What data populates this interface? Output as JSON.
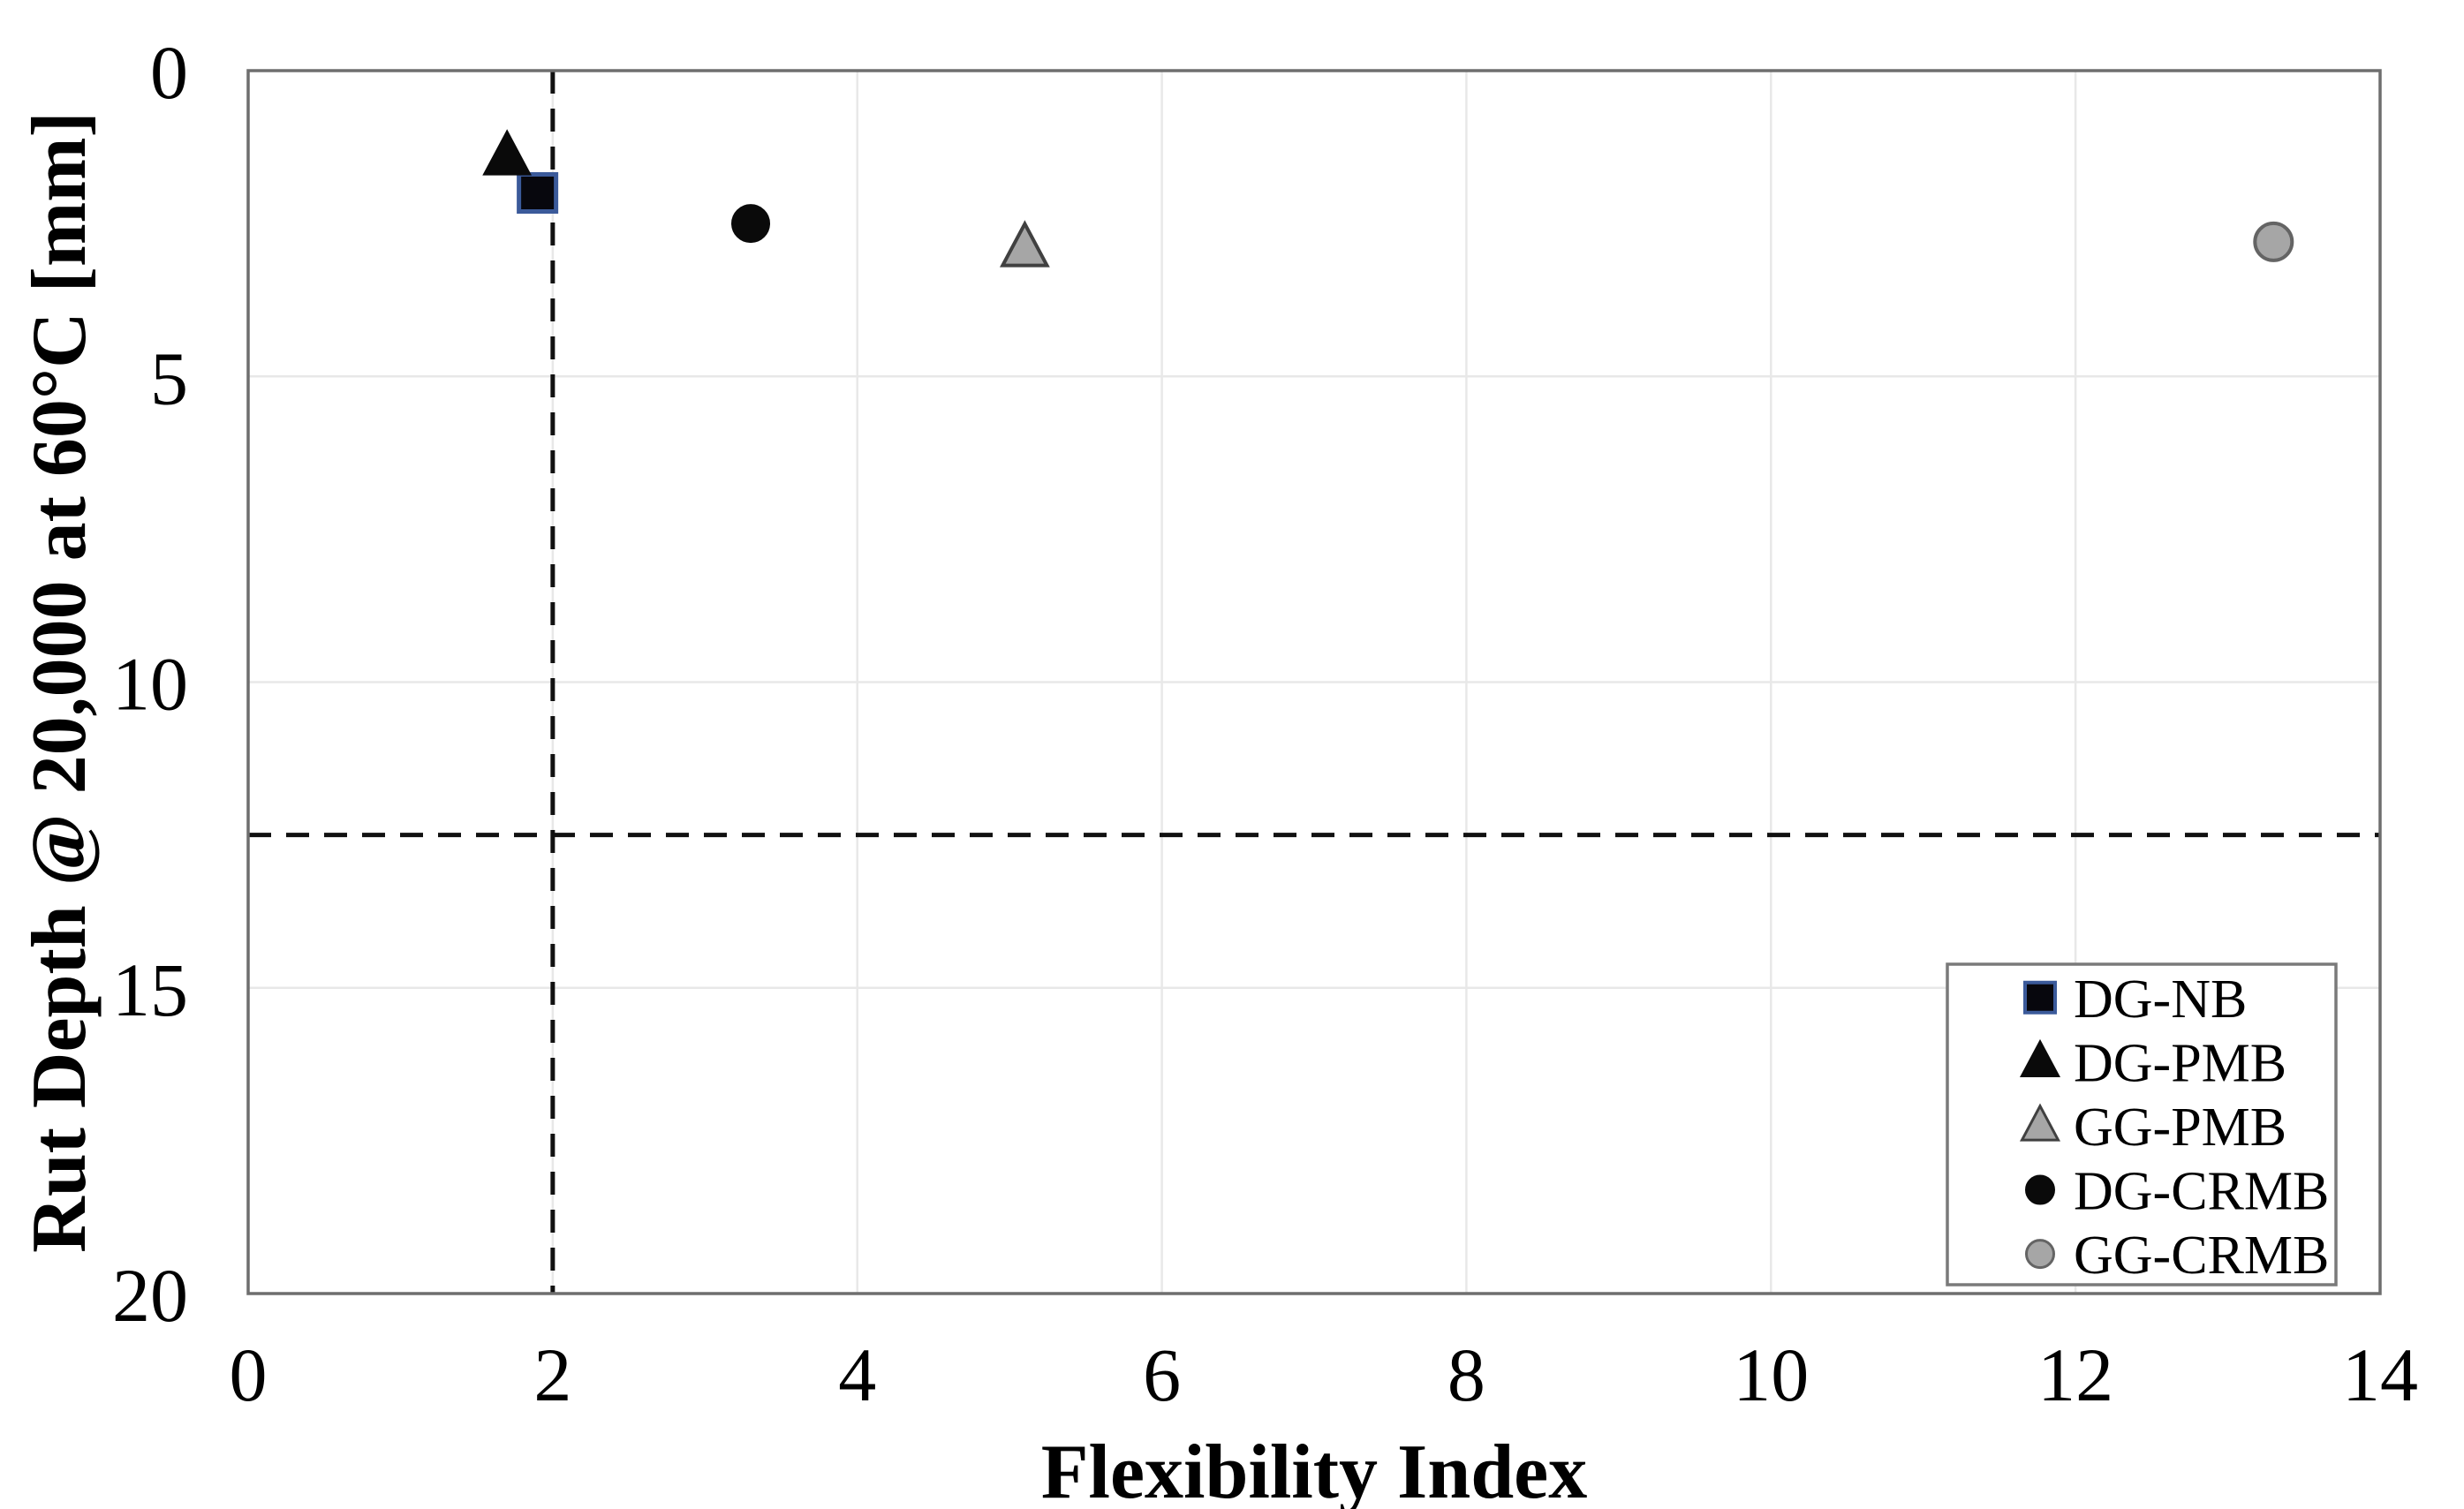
{
  "figure": {
    "background": "#ffffff"
  },
  "chart_data": {
    "type": "scatter",
    "title": "",
    "xlabel": "Flexibility Index",
    "ylabel": "Rut Depth @ 20,000 at 60°C [mm]",
    "xlim": [
      0,
      14
    ],
    "ylim": [
      0,
      20
    ],
    "y_axis_inverted": true,
    "xticks": [
      "0",
      "2",
      "4",
      "6",
      "8",
      "10",
      "12",
      "14"
    ],
    "yticks": [
      "0",
      "5",
      "10",
      "15",
      "20"
    ],
    "grid": true,
    "gridline_color": "#e8e8e8",
    "axis_border_color": "#6e6e6e",
    "series": [
      {
        "name": "DG-NB",
        "marker": "square",
        "fill": "#07070d",
        "stroke": "#3b5a9a",
        "stroke_width": 5,
        "size": 42,
        "legend_size": 34,
        "points": [
          [
            1.9,
            2.0
          ]
        ]
      },
      {
        "name": "DG-PMB",
        "marker": "triangle",
        "fill": "#0a0a0a",
        "stroke": "#0a0a0a",
        "stroke_width": 2,
        "size": 46,
        "legend_size": 36,
        "points": [
          [
            1.7,
            1.4
          ]
        ]
      },
      {
        "name": "GG-PMB",
        "marker": "triangle",
        "fill": "#a6a6a6",
        "stroke": "#404040",
        "stroke_width": 4,
        "size": 44,
        "legend_size": 36,
        "points": [
          [
            5.1,
            2.9
          ]
        ]
      },
      {
        "name": "DG-CRMB",
        "marker": "circle",
        "fill": "#0a0a0a",
        "stroke": "#0a0a0a",
        "stroke_width": 2,
        "size": 42,
        "legend_size": 31,
        "points": [
          [
            3.3,
            2.5
          ]
        ]
      },
      {
        "name": "GG-CRMB",
        "marker": "circle",
        "fill": "#a6a6a6",
        "stroke": "#646464",
        "stroke_width": 4,
        "size": 42,
        "legend_size": 31,
        "points": [
          [
            13.3,
            2.8
          ]
        ]
      }
    ],
    "reference_lines": [
      {
        "axis": "x",
        "value": 2,
        "style": "dashed",
        "color": "#111111"
      },
      {
        "axis": "y",
        "value": 12.5,
        "style": "dashed",
        "color": "#111111"
      }
    ],
    "legend": {
      "position": "bottom-right",
      "border_color": "#7a7a7a",
      "entries": [
        "DG-NB",
        "DG-PMB",
        "GG-PMB",
        "DG-CRMB",
        "GG-CRMB"
      ]
    }
  }
}
